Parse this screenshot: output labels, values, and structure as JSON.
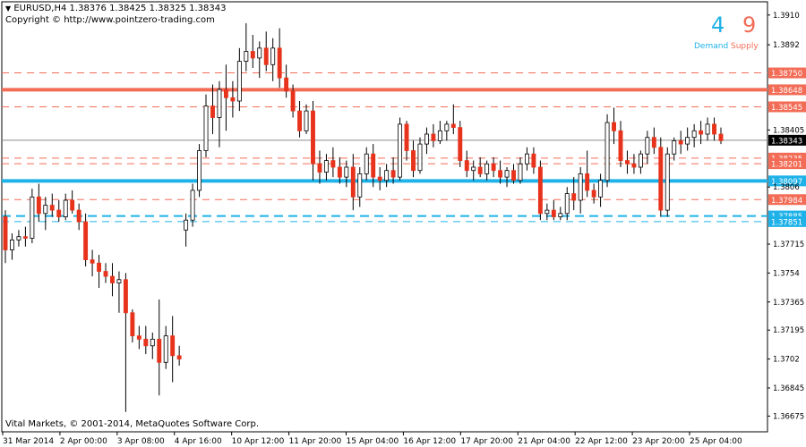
{
  "header": {
    "symbol_line": "EURUSD,H4  1.38376 1.38425 1.38325 1.38343",
    "copyright": "Copyright © http://www.pointzero-trading.com"
  },
  "zones": {
    "demand_count": "4",
    "supply_count": "9",
    "demand_label": "Demand",
    "supply_label": "Supply",
    "demand_color": "#1fb2e8",
    "supply_color": "#f26c56"
  },
  "footer": "Vital Markets, © 2001-2014, MetaQuotes Software Corp.",
  "chart_data": {
    "type": "candlestick",
    "symbol": "EURUSD",
    "timeframe": "H4",
    "ylim": [
      1.3658,
      1.3918
    ],
    "y_ticks": [
      "1.3910",
      "1.3892",
      "1.38750",
      "1.38648",
      "1.38545",
      "1.38405",
      "1.38343",
      "1.38235",
      "1.38201",
      "1.38097",
      "1.3806",
      "1.37984",
      "1.37885",
      "1.37851",
      "1.37715",
      "1.3754",
      "1.37365",
      "1.37195",
      "1.3702",
      "1.36845",
      "1.36675"
    ],
    "y_tick_values": [
      1.391,
      1.3892,
      1.3875,
      1.38648,
      1.38545,
      1.38405,
      1.38343,
      1.38235,
      1.38201,
      1.38097,
      1.3806,
      1.37984,
      1.37885,
      1.37851,
      1.37715,
      1.3754,
      1.37365,
      1.37195,
      1.3702,
      1.36845,
      1.36675
    ],
    "x_ticks": [
      "31 Mar 2014",
      "2 Apr 00:00",
      "3 Apr 08:00",
      "4 Apr 16:00",
      "10 Apr 12:00",
      "11 Apr 20:00",
      "15 Apr 04:00",
      "16 Apr 12:00",
      "17 Apr 20:00",
      "21 Apr 04:00",
      "22 Apr 12:00",
      "23 Apr 20:00",
      "25 Apr 04:00"
    ],
    "levels": [
      {
        "price": 1.3875,
        "label": "1.38750",
        "kind": "supply",
        "style": "dashed"
      },
      {
        "price": 1.38648,
        "label": "1.38648",
        "kind": "supply",
        "style": "thick"
      },
      {
        "price": 1.38545,
        "label": "1.38545",
        "kind": "supply",
        "style": "dashed"
      },
      {
        "price": 1.38235,
        "label": "1.38235",
        "kind": "supply",
        "style": "dashed"
      },
      {
        "price": 1.38201,
        "label": "1.38201",
        "kind": "supply",
        "style": "dashed"
      },
      {
        "price": 1.38097,
        "label": "1.38097",
        "kind": "demand",
        "style": "thick"
      },
      {
        "price": 1.37984,
        "label": "1.37984",
        "kind": "supply",
        "style": "dashed"
      },
      {
        "price": 1.37885,
        "label": "1.37885",
        "kind": "demand",
        "style": "dashed-thick"
      },
      {
        "price": 1.37851,
        "label": "1.37851",
        "kind": "demand",
        "style": "dashed"
      }
    ],
    "last_price": {
      "price": 1.38343,
      "label": "1.38343"
    },
    "candles": [
      [
        1.3788,
        1.3792,
        1.376,
        1.3768
      ],
      [
        1.3768,
        1.3778,
        1.3762,
        1.3774
      ],
      [
        1.3774,
        1.378,
        1.377,
        1.3776
      ],
      [
        1.3776,
        1.3782,
        1.377,
        1.3775
      ],
      [
        1.3775,
        1.3805,
        1.3772,
        1.38
      ],
      [
        1.38,
        1.3808,
        1.3785,
        1.379
      ],
      [
        1.379,
        1.38,
        1.378,
        1.3795
      ],
      [
        1.3795,
        1.3802,
        1.3788,
        1.3792
      ],
      [
        1.3792,
        1.3798,
        1.3785,
        1.3788
      ],
      [
        1.3788,
        1.3802,
        1.3786,
        1.3798
      ],
      [
        1.3798,
        1.3804,
        1.379,
        1.3792
      ],
      [
        1.3792,
        1.3796,
        1.378,
        1.3785
      ],
      [
        1.3785,
        1.379,
        1.3758,
        1.3762
      ],
      [
        1.3762,
        1.3768,
        1.3752,
        1.376
      ],
      [
        1.376,
        1.3765,
        1.3745,
        1.3755
      ],
      [
        1.3755,
        1.376,
        1.3748,
        1.3752
      ],
      [
        1.3752,
        1.376,
        1.374,
        1.3748
      ],
      [
        1.3748,
        1.3755,
        1.373,
        1.375
      ],
      [
        1.375,
        1.3754,
        1.367,
        1.373
      ],
      [
        1.373,
        1.3732,
        1.3712,
        1.3716
      ],
      [
        1.3716,
        1.3722,
        1.3708,
        1.3714
      ],
      [
        1.3714,
        1.3722,
        1.3705,
        1.371
      ],
      [
        1.371,
        1.3718,
        1.3702,
        1.3714
      ],
      [
        1.3714,
        1.3738,
        1.368,
        1.37
      ],
      [
        1.37,
        1.3722,
        1.3696,
        1.3716
      ],
      [
        1.3716,
        1.3728,
        1.3688,
        1.3704
      ],
      [
        1.3704,
        1.371,
        1.3698,
        1.3702
      ],
      [
        1.378,
        1.379,
        1.377,
        1.3786
      ],
      [
        1.3786,
        1.3808,
        1.3782,
        1.3804
      ],
      [
        1.3804,
        1.3832,
        1.38,
        1.3828
      ],
      [
        1.3828,
        1.3862,
        1.3824,
        1.3855
      ],
      [
        1.3855,
        1.3868,
        1.3838,
        1.3848
      ],
      [
        1.3848,
        1.387,
        1.383,
        1.3865
      ],
      [
        1.3865,
        1.388,
        1.384,
        1.386
      ],
      [
        1.386,
        1.387,
        1.3848,
        1.3858
      ],
      [
        1.3858,
        1.389,
        1.3852,
        1.3882
      ],
      [
        1.3882,
        1.3905,
        1.3876,
        1.3888
      ],
      [
        1.3888,
        1.3898,
        1.3878,
        1.3884
      ],
      [
        1.3884,
        1.3894,
        1.3872,
        1.389
      ],
      [
        1.389,
        1.39,
        1.3876,
        1.388
      ],
      [
        1.388,
        1.3896,
        1.387,
        1.389
      ],
      [
        1.389,
        1.3902,
        1.3866,
        1.3872
      ],
      [
        1.3872,
        1.388,
        1.386,
        1.3864
      ],
      [
        1.3864,
        1.3868,
        1.3848,
        1.3852
      ],
      [
        1.3852,
        1.3858,
        1.3836,
        1.384
      ],
      [
        1.384,
        1.3856,
        1.3838,
        1.3852
      ],
      [
        1.3852,
        1.3858,
        1.381,
        1.382
      ],
      [
        1.382,
        1.3828,
        1.3808,
        1.3815
      ],
      [
        1.3815,
        1.3826,
        1.381,
        1.3822
      ],
      [
        1.3822,
        1.383,
        1.3812,
        1.3818
      ],
      [
        1.3818,
        1.3824,
        1.3808,
        1.3812
      ],
      [
        1.3812,
        1.3822,
        1.3806,
        1.3818
      ],
      [
        1.3818,
        1.3826,
        1.3792,
        1.38
      ],
      [
        1.38,
        1.3818,
        1.3794,
        1.3814
      ],
      [
        1.3814,
        1.383,
        1.381,
        1.3826
      ],
      [
        1.3826,
        1.3832,
        1.3806,
        1.3812
      ],
      [
        1.3812,
        1.3818,
        1.3804,
        1.381
      ],
      [
        1.381,
        1.382,
        1.3806,
        1.3816
      ],
      [
        1.3816,
        1.3824,
        1.3808,
        1.3812
      ],
      [
        1.3812,
        1.3848,
        1.381,
        1.3844
      ],
      [
        1.3844,
        1.3846,
        1.3822,
        1.3828
      ],
      [
        1.3828,
        1.3834,
        1.3812,
        1.3816
      ],
      [
        1.3816,
        1.3836,
        1.3814,
        1.3832
      ],
      [
        1.3832,
        1.3842,
        1.3826,
        1.3838
      ],
      [
        1.3838,
        1.3844,
        1.383,
        1.3834
      ],
      [
        1.3834,
        1.3846,
        1.3832,
        1.384
      ],
      [
        1.384,
        1.3846,
        1.3834,
        1.3844
      ],
      [
        1.3844,
        1.3856,
        1.3838,
        1.3842
      ],
      [
        1.3842,
        1.3846,
        1.3818,
        1.3822
      ],
      [
        1.3822,
        1.3828,
        1.3812,
        1.3816
      ],
      [
        1.3816,
        1.3822,
        1.381,
        1.3818
      ],
      [
        1.3818,
        1.3824,
        1.3812,
        1.3814
      ],
      [
        1.3814,
        1.3822,
        1.381,
        1.382
      ],
      [
        1.382,
        1.3824,
        1.3812,
        1.3816
      ],
      [
        1.3816,
        1.3822,
        1.3808,
        1.3812
      ],
      [
        1.3812,
        1.3818,
        1.3806,
        1.3816
      ],
      [
        1.3816,
        1.382,
        1.3808,
        1.381
      ],
      [
        1.381,
        1.3824,
        1.3808,
        1.382
      ],
      [
        1.382,
        1.383,
        1.3816,
        1.3826
      ],
      [
        1.3826,
        1.383,
        1.3814,
        1.3818
      ],
      [
        1.3818,
        1.3822,
        1.3786,
        1.379
      ],
      [
        1.379,
        1.3796,
        1.3786,
        1.3792
      ],
      [
        1.3792,
        1.3798,
        1.3786,
        1.3788
      ],
      [
        1.3788,
        1.3794,
        1.3786,
        1.379
      ],
      [
        1.379,
        1.3806,
        1.3786,
        1.3802
      ],
      [
        1.3802,
        1.3812,
        1.3792,
        1.3798
      ],
      [
        1.3798,
        1.3818,
        1.379,
        1.3814
      ],
      [
        1.3814,
        1.3828,
        1.38,
        1.3804
      ],
      [
        1.3804,
        1.3808,
        1.3796,
        1.38
      ],
      [
        1.38,
        1.3814,
        1.3794,
        1.381
      ],
      [
        1.381,
        1.385,
        1.3806,
        1.3845
      ],
      [
        1.3845,
        1.3854,
        1.3832,
        1.384
      ],
      [
        1.384,
        1.3846,
        1.3818,
        1.3822
      ],
      [
        1.3822,
        1.3828,
        1.3814,
        1.382
      ],
      [
        1.382,
        1.3826,
        1.3814,
        1.3818
      ],
      [
        1.3818,
        1.3828,
        1.3814,
        1.3826
      ],
      [
        1.3826,
        1.384,
        1.382,
        1.3836
      ],
      [
        1.3836,
        1.3842,
        1.3826,
        1.383
      ],
      [
        1.383,
        1.3836,
        1.3788,
        1.3792
      ],
      [
        1.3792,
        1.383,
        1.3788,
        1.3826
      ],
      [
        1.3826,
        1.3836,
        1.3822,
        1.3834
      ],
      [
        1.3834,
        1.384,
        1.3826,
        1.3832
      ],
      [
        1.3832,
        1.3842,
        1.3828,
        1.3836
      ],
      [
        1.3836,
        1.3844,
        1.383,
        1.384
      ],
      [
        1.384,
        1.3846,
        1.3832,
        1.3838
      ],
      [
        1.3838,
        1.3848,
        1.3834,
        1.3844
      ],
      [
        1.3844,
        1.3848,
        1.3834,
        1.3838
      ],
      [
        1.3838,
        1.3842,
        1.3832,
        1.3834
      ]
    ]
  }
}
